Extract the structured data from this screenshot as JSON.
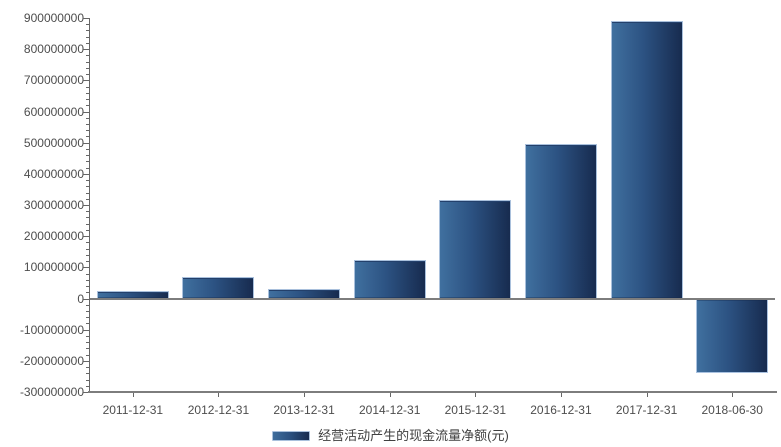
{
  "chart_data": {
    "type": "bar",
    "title": "",
    "xlabel": "",
    "ylabel": "",
    "categories": [
      "2011-12-31",
      "2012-12-31",
      "2013-12-31",
      "2014-12-31",
      "2015-12-31",
      "2016-12-31",
      "2017-12-31",
      "2018-06-30"
    ],
    "series": [
      {
        "name": "经营活动产生的现金流量净额(元)",
        "values": [
          25000000,
          70000000,
          30000000,
          125000000,
          315000000,
          495000000,
          890000000,
          -240000000
        ]
      }
    ],
    "ylim": [
      -300000000,
      900000000
    ],
    "y_tick_step": 100000000,
    "y_minor_tick_step": 20000000,
    "grid": false,
    "legend_position": "bottom",
    "colors": {
      "bar_gradient_start": "#40709f",
      "bar_gradient_mid": "#2c5282",
      "bar_gradient_end": "#172b4f",
      "bar_border": "#a9c0dc",
      "axis_line": "#7d7d7d",
      "tick": "#666666",
      "text": "#4d4d4d"
    }
  },
  "legend": {
    "label": "经营活动产生的现金流量净额(元)"
  }
}
